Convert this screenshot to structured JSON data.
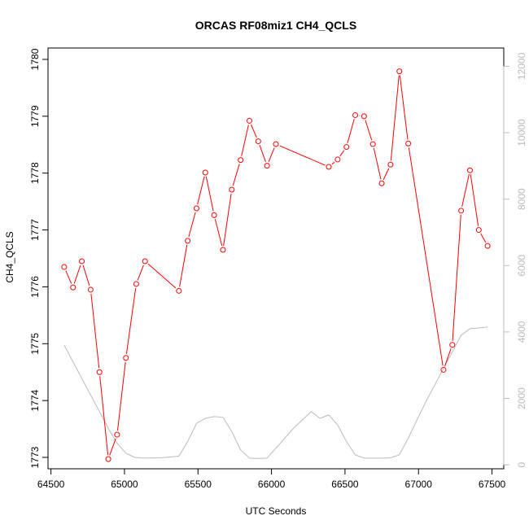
{
  "chart_data": {
    "type": "line",
    "title": "ORCAS RF08miz1 CH4_QCLS",
    "xlabel": "UTC Seconds",
    "ylabel": "CH4_QCLS",
    "xlim": [
      64480,
      67580
    ],
    "ylim": [
      1772.8,
      1780.2
    ],
    "y2lim": [
      -120,
      12550
    ],
    "x_ticks": [
      64500,
      65000,
      65500,
      66000,
      66500,
      67000,
      67500
    ],
    "y_ticks": [
      1773,
      1774,
      1775,
      1776,
      1777,
      1778,
      1779,
      1780
    ],
    "y2_ticks": [
      0,
      2000,
      4000,
      6000,
      8000,
      10000,
      12000
    ],
    "grid": false,
    "colors": {
      "primary": "#ff0000",
      "secondary": "#bbbbbb",
      "axis": "#000000"
    },
    "series": [
      {
        "axis": "left",
        "style": "line+markers",
        "x": [
          64590,
          64650,
          64710,
          64770,
          64830,
          64890,
          64950,
          65010,
          65080,
          65140,
          65370,
          65430,
          65490,
          65550,
          65610,
          65670,
          65730,
          65790,
          65850,
          65910,
          65970,
          66030,
          66390,
          66450,
          66510,
          66570,
          66630,
          66690,
          66750,
          66810,
          66870,
          66930,
          67170,
          67230,
          67290,
          67350,
          67410,
          67470
        ],
        "y": [
          1776.35,
          1775.99,
          1776.45,
          1775.95,
          1774.5,
          1772.97,
          1773.4,
          1774.75,
          1776.05,
          1776.45,
          1775.93,
          1776.81,
          1777.38,
          1778.01,
          1777.26,
          1776.65,
          1777.71,
          1778.23,
          1778.92,
          1778.56,
          1778.13,
          1778.51,
          1778.11,
          1778.24,
          1778.46,
          1779.02,
          1779.0,
          1778.51,
          1777.82,
          1778.15,
          1779.79,
          1778.52,
          1774.54,
          1774.98,
          1777.34,
          1778.05,
          1777.0,
          1776.72
        ]
      },
      {
        "axis": "right",
        "style": "line",
        "x": [
          64590,
          64650,
          64710,
          64770,
          64830,
          64890,
          64950,
          65010,
          65070,
          65130,
          65250,
          65370,
          65430,
          65490,
          65550,
          65610,
          65670,
          65730,
          65790,
          65850,
          65910,
          65970,
          66030,
          66090,
          66150,
          66210,
          66270,
          66330,
          66390,
          66450,
          66510,
          66570,
          66630,
          66690,
          66750,
          66810,
          66870,
          66930,
          66990,
          67050,
          67110,
          67170,
          67230,
          67290,
          67350,
          67410,
          67470
        ],
        "y": [
          3600,
          3100,
          2600,
          2100,
          1600,
          1100,
          650,
          350,
          220,
          200,
          210,
          260,
          700,
          1250,
          1400,
          1450,
          1430,
          1000,
          450,
          200,
          190,
          200,
          500,
          800,
          1100,
          1350,
          1600,
          1400,
          1500,
          1200,
          700,
          300,
          200,
          200,
          200,
          210,
          300,
          800,
          1350,
          1900,
          2400,
          2900,
          3400,
          3900,
          4100,
          4120,
          4150
        ]
      }
    ]
  }
}
